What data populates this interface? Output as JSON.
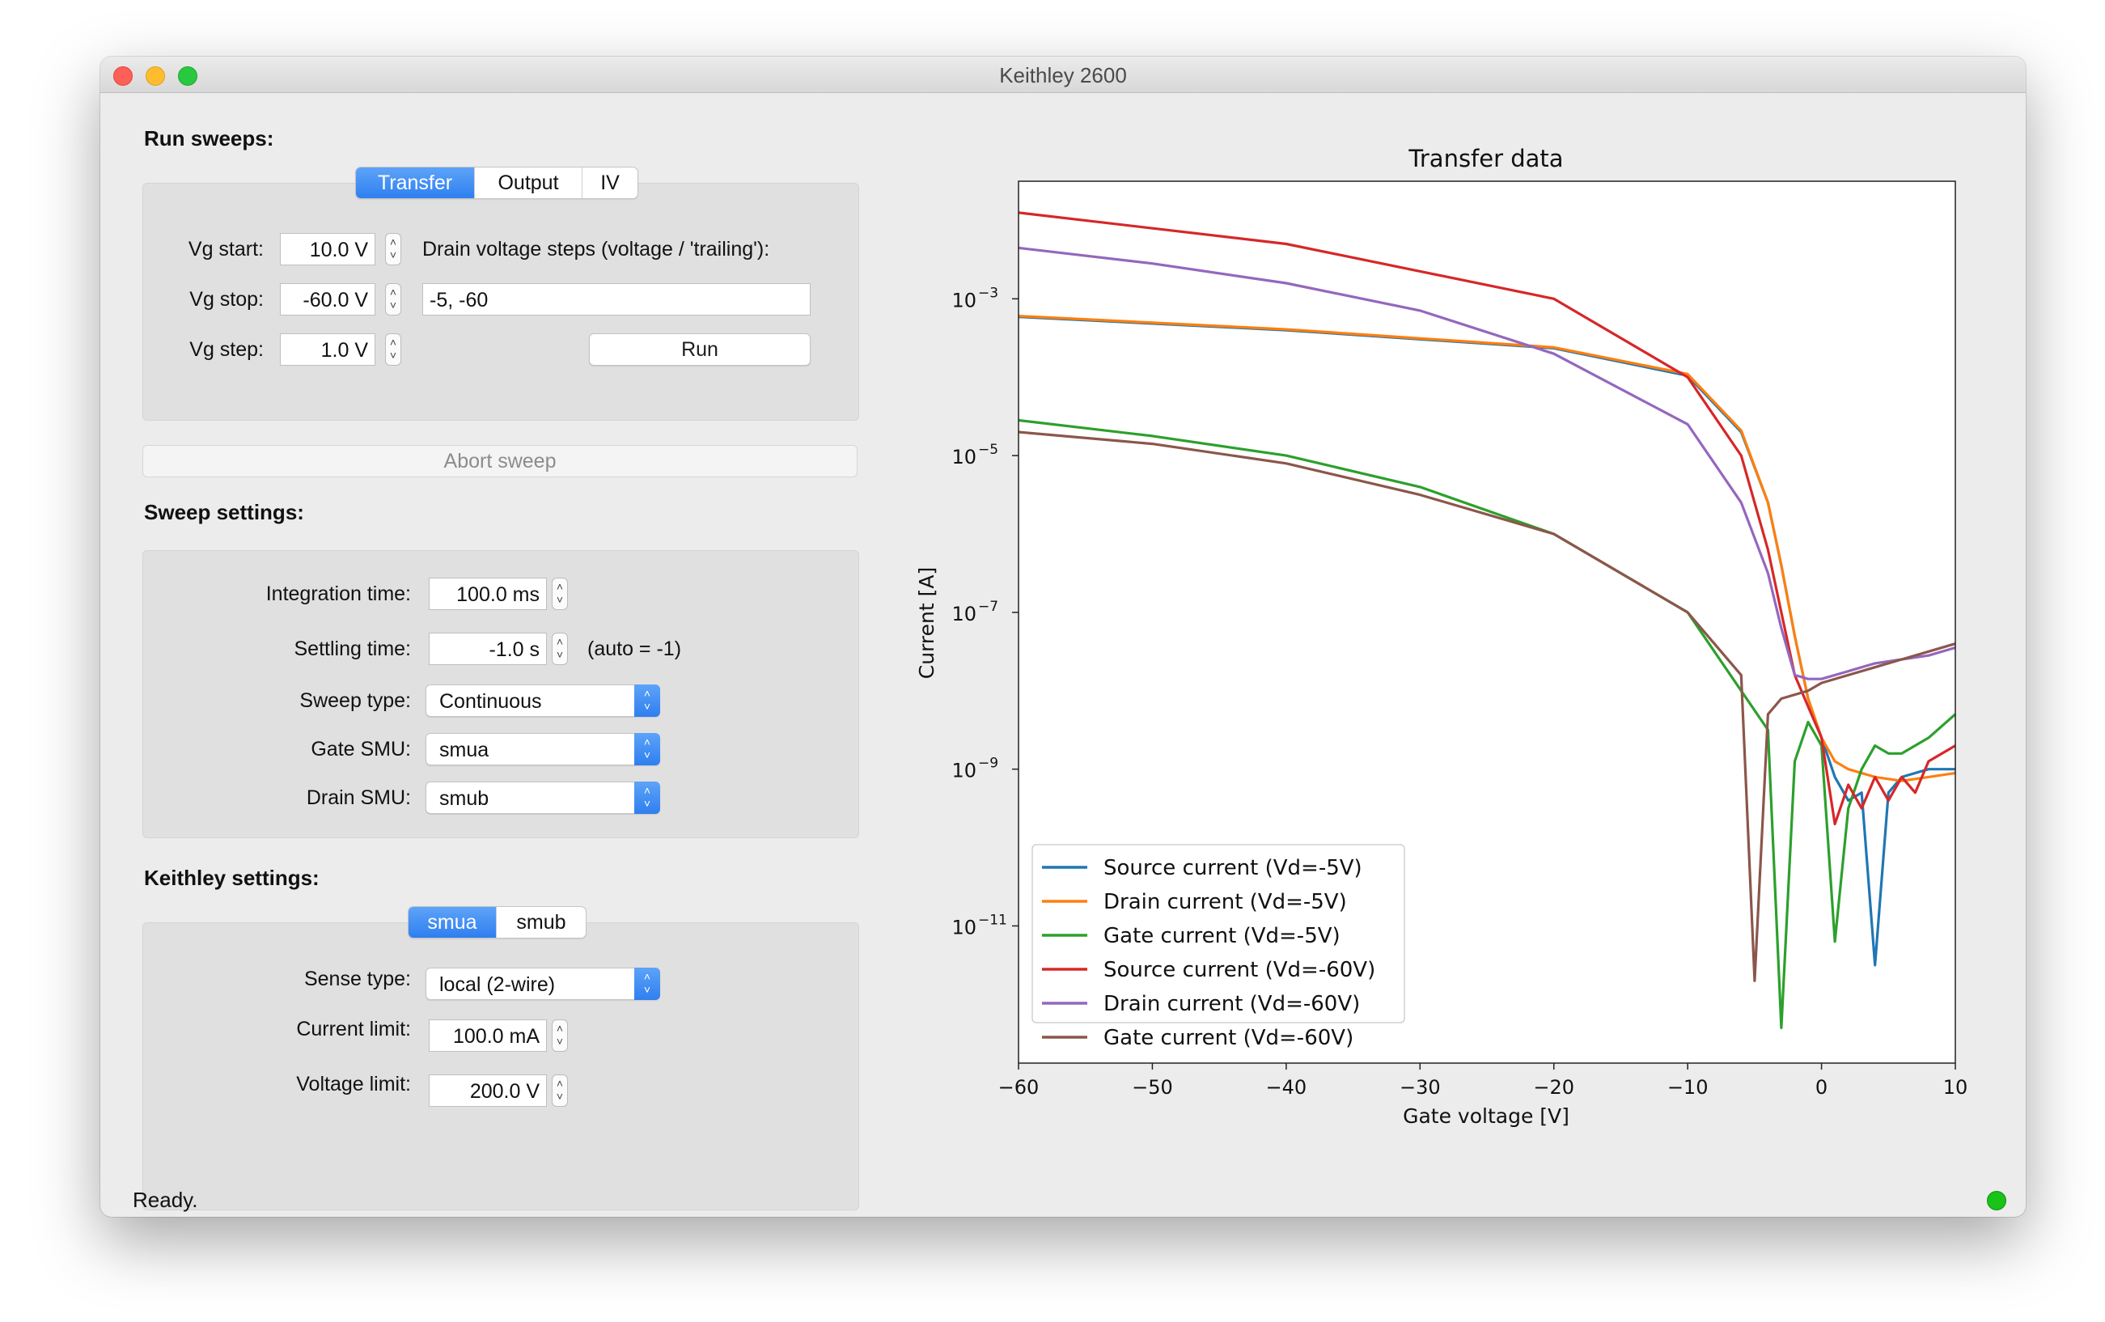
{
  "window": {
    "title": "Keithley 2600"
  },
  "run_sweeps": {
    "label": "Run sweeps:",
    "tabs": [
      "Transfer",
      "Output",
      "IV"
    ],
    "active_tab": "Transfer",
    "vg_start_label": "Vg start:",
    "vg_start_value": "10.0 V",
    "vg_stop_label": "Vg stop:",
    "vg_stop_value": "-60.0 V",
    "vg_step_label": "Vg step:",
    "vg_step_value": "1.0 V",
    "drain_steps_label": "Drain voltage steps (voltage / 'trailing'):",
    "drain_steps_value": "-5, -60",
    "run_label": "Run",
    "abort_label": "Abort sweep"
  },
  "sweep_settings": {
    "label": "Sweep settings:",
    "integration_label": "Integration time:",
    "integration_value": "100.0 ms",
    "settling_label": "Settling time:",
    "settling_value": "-1.0 s",
    "settling_hint": "(auto = -1)",
    "sweep_type_label": "Sweep type:",
    "sweep_type_value": "Continuous",
    "gate_smu_label": "Gate SMU:",
    "gate_smu_value": "smua",
    "drain_smu_label": "Drain SMU:",
    "drain_smu_value": "smub"
  },
  "keithley_settings": {
    "label": "Keithley settings:",
    "tabs": [
      "smua",
      "smub"
    ],
    "active_tab": "smua",
    "sense_type_label": "Sense type:",
    "sense_type_value": "local (2-wire)",
    "current_limit_label": "Current limit:",
    "current_limit_value": "100.0 mA",
    "voltage_limit_label": "Voltage limit:",
    "voltage_limit_value": "200.0 V"
  },
  "status": {
    "text": "Ready.",
    "indicator_color": "#19c319"
  },
  "icons": {
    "spin": "stepper-arrows-icon",
    "select": "popup-arrows-icon"
  },
  "chart_data": {
    "type": "line",
    "title": "Transfer data",
    "xlabel": "Gate voltage [V]",
    "ylabel": "Current [A]",
    "xlim": [
      -60,
      10
    ],
    "ylim_log10": [
      -12.75,
      -1.5
    ],
    "yscale": "log",
    "grid": false,
    "legend_position": "lower-left",
    "xticks": [
      "−60",
      "−50",
      "−40",
      "−30",
      "−20",
      "−10",
      "0",
      "10"
    ],
    "yticks": [
      {
        "base": "10",
        "exp": "−3"
      },
      {
        "base": "10",
        "exp": "−5"
      },
      {
        "base": "10",
        "exp": "−7"
      },
      {
        "base": "10",
        "exp": "−9"
      },
      {
        "base": "10",
        "exp": "−11"
      }
    ],
    "series": [
      {
        "name": "Source current (Vd=-5V)",
        "color": "#1f77b4",
        "x": [
          -60,
          -40,
          -20,
          -10,
          -6,
          -4,
          -3,
          -2,
          -1,
          0,
          1,
          2,
          3,
          4,
          5,
          6,
          8,
          10
        ],
        "log10y": [
          -3.23,
          -3.4,
          -3.63,
          -3.98,
          -4.7,
          -5.6,
          -6.4,
          -7.3,
          -8.1,
          -8.6,
          -9.1,
          -9.4,
          -9.3,
          -11.5,
          -9.3,
          -9.1,
          -9.0,
          -9.0
        ]
      },
      {
        "name": "Drain current (Vd=-5V)",
        "color": "#ff7f0e",
        "x": [
          -60,
          -40,
          -20,
          -10,
          -6,
          -4,
          -3,
          -2,
          -1,
          0,
          1,
          2,
          4,
          6,
          8,
          10
        ],
        "log10y": [
          -3.22,
          -3.39,
          -3.62,
          -3.96,
          -4.68,
          -5.6,
          -6.4,
          -7.3,
          -8.1,
          -8.6,
          -8.9,
          -9.0,
          -9.1,
          -9.15,
          -9.1,
          -9.05
        ]
      },
      {
        "name": "Gate current (Vd=-5V)",
        "color": "#2ca02c",
        "x": [
          -60,
          -50,
          -40,
          -30,
          -20,
          -10,
          -6,
          -4,
          -3,
          -2,
          -1,
          0,
          1,
          2,
          3,
          4,
          5,
          6,
          8,
          10
        ],
        "log10y": [
          -4.55,
          -4.75,
          -5.0,
          -5.4,
          -6.0,
          -7.0,
          -8.0,
          -8.5,
          -12.3,
          -8.9,
          -8.4,
          -8.7,
          -11.2,
          -9.5,
          -9.0,
          -8.7,
          -8.8,
          -8.8,
          -8.6,
          -8.3
        ]
      },
      {
        "name": "Source current (Vd=-60V)",
        "color": "#d62728",
        "x": [
          -60,
          -40,
          -20,
          -10,
          -6,
          -4,
          -3,
          -2,
          -1,
          0,
          1,
          2,
          3,
          4,
          5,
          6,
          7,
          8,
          10
        ],
        "log10y": [
          -1.9,
          -2.3,
          -3.0,
          -4.0,
          -5.0,
          -6.2,
          -7.0,
          -7.8,
          -8.2,
          -8.6,
          -9.7,
          -9.2,
          -9.5,
          -9.1,
          -9.4,
          -9.1,
          -9.3,
          -8.9,
          -8.7
        ]
      },
      {
        "name": "Drain current (Vd=-60V)",
        "color": "#9467bd",
        "x": [
          -60,
          -50,
          -40,
          -30,
          -20,
          -10,
          -6,
          -4,
          -3,
          -2,
          -1,
          0,
          2,
          4,
          6,
          8,
          10
        ],
        "log10y": [
          -2.35,
          -2.55,
          -2.8,
          -3.15,
          -3.7,
          -4.6,
          -5.6,
          -6.5,
          -7.2,
          -7.8,
          -7.85,
          -7.85,
          -7.75,
          -7.65,
          -7.6,
          -7.55,
          -7.45
        ]
      },
      {
        "name": "Gate current (Vd=-60V)",
        "color": "#8c564b",
        "x": [
          -60,
          -50,
          -40,
          -30,
          -20,
          -10,
          -6,
          -5,
          -4,
          -3,
          -2,
          -1,
          0,
          2,
          4,
          6,
          8,
          10
        ],
        "log10y": [
          -4.7,
          -4.85,
          -5.1,
          -5.5,
          -6.0,
          -7.0,
          -7.8,
          -11.7,
          -8.3,
          -8.1,
          -8.05,
          -8.0,
          -7.9,
          -7.8,
          -7.7,
          -7.6,
          -7.5,
          -7.4
        ]
      }
    ]
  }
}
